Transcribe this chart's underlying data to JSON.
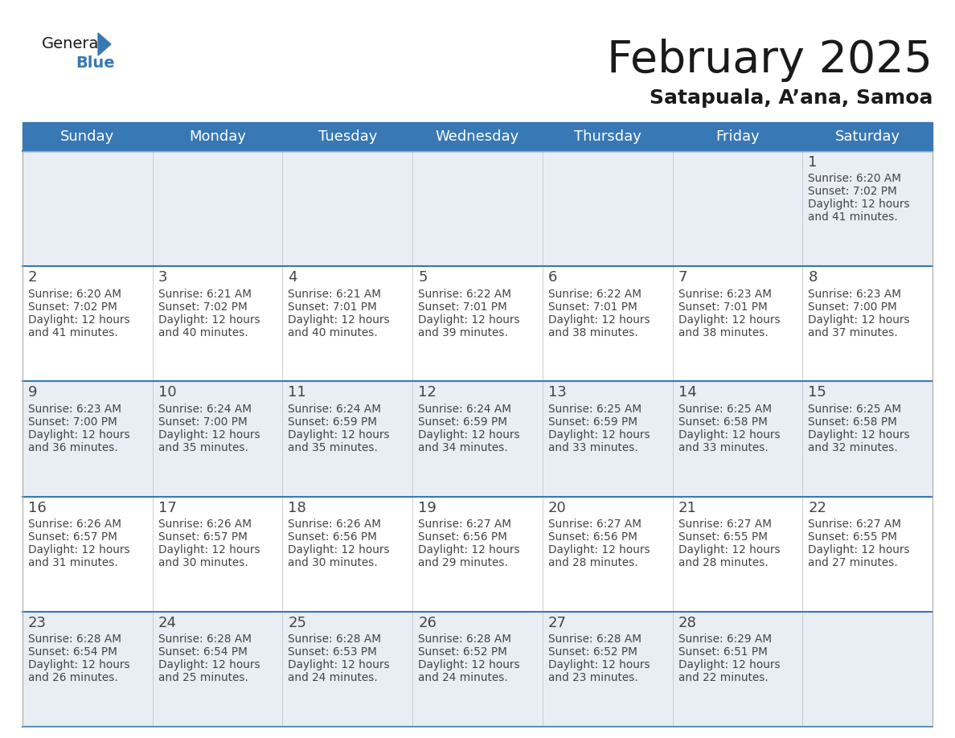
{
  "title": "February 2025",
  "subtitle": "Satapuala, A’ana, Samoa",
  "header_bg_color": "#3878b4",
  "header_text_color": "#ffffff",
  "day_names": [
    "Sunday",
    "Monday",
    "Tuesday",
    "Wednesday",
    "Thursday",
    "Friday",
    "Saturday"
  ],
  "bg_color": "#ffffff",
  "row_bg_colors": [
    "#e8eef4",
    "#ffffff",
    "#e8eef4",
    "#ffffff",
    "#e8eef4"
  ],
  "divider_color": "#3878b4",
  "number_color": "#444444",
  "text_color": "#444444",
  "days": [
    {
      "day": 1,
      "col": 6,
      "row": 0,
      "sunrise": "6:20 AM",
      "sunset": "7:02 PM",
      "daylight": "12 hours and 41 minutes."
    },
    {
      "day": 2,
      "col": 0,
      "row": 1,
      "sunrise": "6:20 AM",
      "sunset": "7:02 PM",
      "daylight": "12 hours and 41 minutes."
    },
    {
      "day": 3,
      "col": 1,
      "row": 1,
      "sunrise": "6:21 AM",
      "sunset": "7:02 PM",
      "daylight": "12 hours and 40 minutes."
    },
    {
      "day": 4,
      "col": 2,
      "row": 1,
      "sunrise": "6:21 AM",
      "sunset": "7:01 PM",
      "daylight": "12 hours and 40 minutes."
    },
    {
      "day": 5,
      "col": 3,
      "row": 1,
      "sunrise": "6:22 AM",
      "sunset": "7:01 PM",
      "daylight": "12 hours and 39 minutes."
    },
    {
      "day": 6,
      "col": 4,
      "row": 1,
      "sunrise": "6:22 AM",
      "sunset": "7:01 PM",
      "daylight": "12 hours and 38 minutes."
    },
    {
      "day": 7,
      "col": 5,
      "row": 1,
      "sunrise": "6:23 AM",
      "sunset": "7:01 PM",
      "daylight": "12 hours and 38 minutes."
    },
    {
      "day": 8,
      "col": 6,
      "row": 1,
      "sunrise": "6:23 AM",
      "sunset": "7:00 PM",
      "daylight": "12 hours and 37 minutes."
    },
    {
      "day": 9,
      "col": 0,
      "row": 2,
      "sunrise": "6:23 AM",
      "sunset": "7:00 PM",
      "daylight": "12 hours and 36 minutes."
    },
    {
      "day": 10,
      "col": 1,
      "row": 2,
      "sunrise": "6:24 AM",
      "sunset": "7:00 PM",
      "daylight": "12 hours and 35 minutes."
    },
    {
      "day": 11,
      "col": 2,
      "row": 2,
      "sunrise": "6:24 AM",
      "sunset": "6:59 PM",
      "daylight": "12 hours and 35 minutes."
    },
    {
      "day": 12,
      "col": 3,
      "row": 2,
      "sunrise": "6:24 AM",
      "sunset": "6:59 PM",
      "daylight": "12 hours and 34 minutes."
    },
    {
      "day": 13,
      "col": 4,
      "row": 2,
      "sunrise": "6:25 AM",
      "sunset": "6:59 PM",
      "daylight": "12 hours and 33 minutes."
    },
    {
      "day": 14,
      "col": 5,
      "row": 2,
      "sunrise": "6:25 AM",
      "sunset": "6:58 PM",
      "daylight": "12 hours and 33 minutes."
    },
    {
      "day": 15,
      "col": 6,
      "row": 2,
      "sunrise": "6:25 AM",
      "sunset": "6:58 PM",
      "daylight": "12 hours and 32 minutes."
    },
    {
      "day": 16,
      "col": 0,
      "row": 3,
      "sunrise": "6:26 AM",
      "sunset": "6:57 PM",
      "daylight": "12 hours and 31 minutes."
    },
    {
      "day": 17,
      "col": 1,
      "row": 3,
      "sunrise": "6:26 AM",
      "sunset": "6:57 PM",
      "daylight": "12 hours and 30 minutes."
    },
    {
      "day": 18,
      "col": 2,
      "row": 3,
      "sunrise": "6:26 AM",
      "sunset": "6:56 PM",
      "daylight": "12 hours and 30 minutes."
    },
    {
      "day": 19,
      "col": 3,
      "row": 3,
      "sunrise": "6:27 AM",
      "sunset": "6:56 PM",
      "daylight": "12 hours and 29 minutes."
    },
    {
      "day": 20,
      "col": 4,
      "row": 3,
      "sunrise": "6:27 AM",
      "sunset": "6:56 PM",
      "daylight": "12 hours and 28 minutes."
    },
    {
      "day": 21,
      "col": 5,
      "row": 3,
      "sunrise": "6:27 AM",
      "sunset": "6:55 PM",
      "daylight": "12 hours and 28 minutes."
    },
    {
      "day": 22,
      "col": 6,
      "row": 3,
      "sunrise": "6:27 AM",
      "sunset": "6:55 PM",
      "daylight": "12 hours and 27 minutes."
    },
    {
      "day": 23,
      "col": 0,
      "row": 4,
      "sunrise": "6:28 AM",
      "sunset": "6:54 PM",
      "daylight": "12 hours and 26 minutes."
    },
    {
      "day": 24,
      "col": 1,
      "row": 4,
      "sunrise": "6:28 AM",
      "sunset": "6:54 PM",
      "daylight": "12 hours and 25 minutes."
    },
    {
      "day": 25,
      "col": 2,
      "row": 4,
      "sunrise": "6:28 AM",
      "sunset": "6:53 PM",
      "daylight": "12 hours and 24 minutes."
    },
    {
      "day": 26,
      "col": 3,
      "row": 4,
      "sunrise": "6:28 AM",
      "sunset": "6:52 PM",
      "daylight": "12 hours and 24 minutes."
    },
    {
      "day": 27,
      "col": 4,
      "row": 4,
      "sunrise": "6:28 AM",
      "sunset": "6:52 PM",
      "daylight": "12 hours and 23 minutes."
    },
    {
      "day": 28,
      "col": 5,
      "row": 4,
      "sunrise": "6:29 AM",
      "sunset": "6:51 PM",
      "daylight": "12 hours and 22 minutes."
    }
  ],
  "logo_color_general": "#1a1a1a",
  "logo_color_blue": "#3878b4",
  "logo_triangle_color": "#3878b4",
  "title_fontsize": 40,
  "subtitle_fontsize": 18,
  "header_fontsize": 13,
  "day_num_fontsize": 13,
  "info_fontsize": 9.8
}
